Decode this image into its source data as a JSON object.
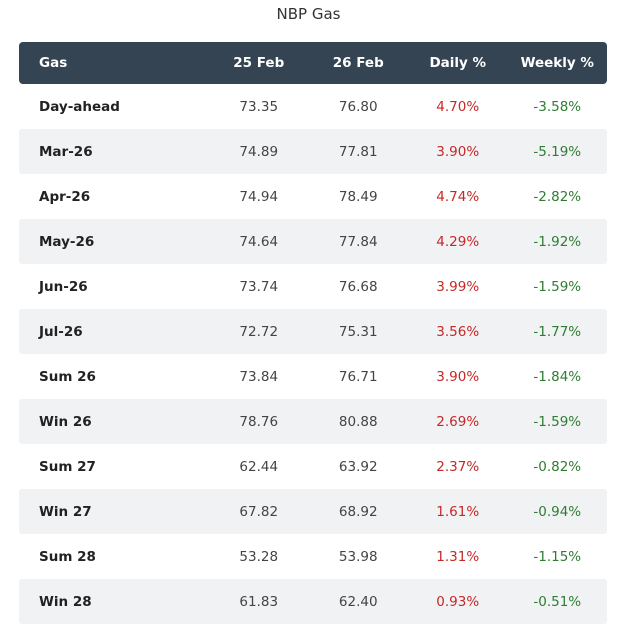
{
  "title": "NBP Gas",
  "colors": {
    "header_bg": "#344452",
    "stripe_bg": "#f1f2f4",
    "positive_red": "#c62828",
    "negative_green": "#2e7d32"
  },
  "table": {
    "headers": [
      "Gas",
      "25 Feb",
      "26 Feb",
      "Daily %",
      "Weekly %"
    ],
    "rows": [
      [
        "Day-ahead",
        "73.35",
        "76.80",
        "4.70%",
        "-3.58%"
      ],
      [
        "Mar-26",
        "74.89",
        "77.81",
        "3.90%",
        "-5.19%"
      ],
      [
        "Apr-26",
        "74.94",
        "78.49",
        "4.74%",
        "-2.82%"
      ],
      [
        "May-26",
        "74.64",
        "77.84",
        "4.29%",
        "-1.92%"
      ],
      [
        "Jun-26",
        "73.74",
        "76.68",
        "3.99%",
        "-1.59%"
      ],
      [
        "Jul-26",
        "72.72",
        "75.31",
        "3.56%",
        "-1.77%"
      ],
      [
        "Sum 26",
        "73.84",
        "76.71",
        "3.90%",
        "-1.84%"
      ],
      [
        "Win 26",
        "78.76",
        "80.88",
        "2.69%",
        "-1.59%"
      ],
      [
        "Sum 27",
        "62.44",
        "63.92",
        "2.37%",
        "-0.82%"
      ],
      [
        "Win 27",
        "67.82",
        "68.92",
        "1.61%",
        "-0.94%"
      ],
      [
        "Sum 28",
        "53.28",
        "53.98",
        "1.31%",
        "-1.15%"
      ],
      [
        "Win 28",
        "61.83",
        "62.40",
        "0.93%",
        "-0.51%"
      ]
    ]
  }
}
